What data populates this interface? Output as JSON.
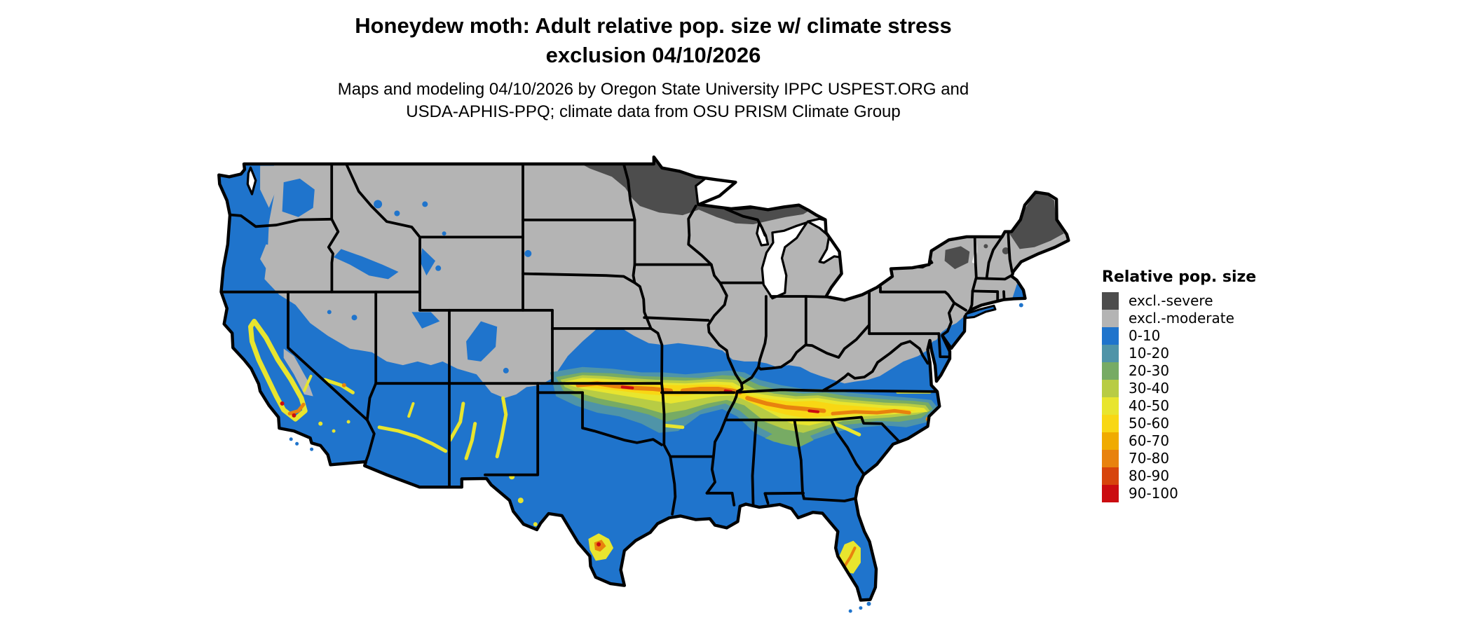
{
  "title": {
    "line1": "Honeydew moth: Adult relative pop. size w/ climate stress",
    "line2": "exclusion 04/10/2026"
  },
  "subtitle": {
    "line1": "Maps and modeling 04/10/2026 by Oregon State University IPPC USPEST.ORG and",
    "line2": "USDA-APHIS-PPQ; climate data from OSU PRISM Climate Group"
  },
  "legend": {
    "title": "Relative pop. size",
    "items": [
      {
        "label": "excl.-severe",
        "color": "#4d4d4d"
      },
      {
        "label": "excl.-moderate",
        "color": "#b4b4b4"
      },
      {
        "label": "0-10",
        "color": "#1f74cc"
      },
      {
        "label": "10-20",
        "color": "#4f94a8"
      },
      {
        "label": "20-30",
        "color": "#77ab64"
      },
      {
        "label": "30-40",
        "color": "#b8cc44"
      },
      {
        "label": "40-50",
        "color": "#e8e52e"
      },
      {
        "label": "50-60",
        "color": "#f8d714"
      },
      {
        "label": "60-70",
        "color": "#f0ab00"
      },
      {
        "label": "70-80",
        "color": "#e8820e"
      },
      {
        "label": "80-90",
        "color": "#d7440c"
      },
      {
        "label": "90-100",
        "color": "#cb0c10"
      }
    ]
  },
  "map": {
    "background": "#ffffff",
    "state_border_color": "#000000",
    "water_color": "#ffffff"
  }
}
